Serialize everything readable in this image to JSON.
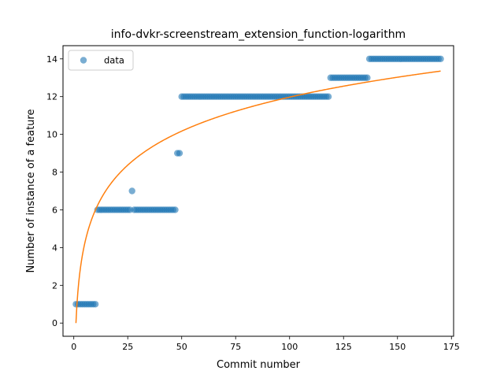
{
  "chart_data": {
    "type": "scatter",
    "title": "info-dvkr-screenstream_extension_function-logarithm",
    "xlabel": "Commit number",
    "ylabel": "Number of instance of a feature",
    "xlim": [
      -5,
      176
    ],
    "ylim": [
      -0.7,
      14.7
    ],
    "xticks": [
      0,
      25,
      50,
      75,
      100,
      125,
      150,
      175
    ],
    "yticks": [
      0,
      2,
      4,
      6,
      8,
      10,
      12,
      14
    ],
    "grid": false,
    "legend_position": "top-left",
    "colors": {
      "data": "#1f77b4",
      "fit": "#ff7f0e"
    },
    "series": [
      {
        "name": "data",
        "kind": "scatter",
        "segments": [
          {
            "x_start": 1,
            "x_end": 10,
            "y": 1
          },
          {
            "x_start": 11,
            "x_end": 26,
            "y": 6
          },
          {
            "x_start": 27,
            "x_end": 27,
            "y": 7
          },
          {
            "x_start": 28,
            "x_end": 47,
            "y": 6
          },
          {
            "x_start": 48,
            "x_end": 49,
            "y": 9
          },
          {
            "x_start": 50,
            "x_end": 118,
            "y": 12
          },
          {
            "x_start": 119,
            "x_end": 136,
            "y": 13
          },
          {
            "x_start": 137,
            "x_end": 170,
            "y": 14
          }
        ]
      },
      {
        "kind": "line",
        "function": "logarithm",
        "a": 2.6,
        "b": 0,
        "x_min": 1,
        "x_max": 170
      }
    ]
  }
}
